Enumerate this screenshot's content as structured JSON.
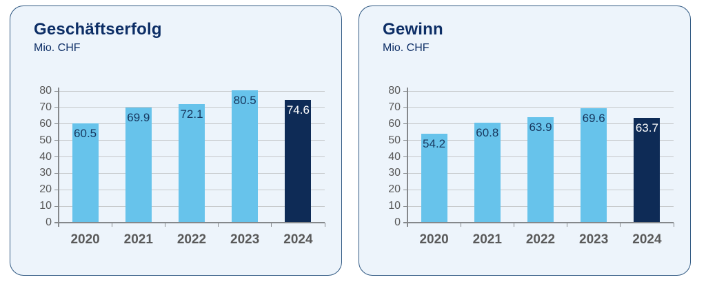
{
  "cards": [
    {
      "title": "Geschäftserfolg",
      "subtitle": "Mio. CHF"
    },
    {
      "title": "Gewinn",
      "subtitle": "Mio. CHF"
    }
  ],
  "chart_data": [
    {
      "type": "bar",
      "title": "Geschäftserfolg",
      "subtitle": "Mio. CHF",
      "ylabel": "Mio. CHF",
      "categories": [
        "2020",
        "2021",
        "2022",
        "2023",
        "2024"
      ],
      "values": [
        60.5,
        69.9,
        72.1,
        80.5,
        74.6
      ],
      "highlight_index": 4,
      "ylim": [
        0,
        80
      ],
      "ytick_step": 10,
      "grid": true,
      "legend": "none",
      "value_label_position": "inside-end"
    },
    {
      "type": "bar",
      "title": "Gewinn",
      "subtitle": "Mio. CHF",
      "ylabel": "Mio. CHF",
      "categories": [
        "2020",
        "2021",
        "2022",
        "2023",
        "2024"
      ],
      "values": [
        54.2,
        60.8,
        63.9,
        69.6,
        63.7
      ],
      "highlight_index": 4,
      "ylim": [
        0,
        80
      ],
      "ytick_step": 10,
      "grid": true,
      "legend": "none",
      "value_label_position": "inside-end"
    }
  ],
  "colors": {
    "bar_light": "#67C3EB",
    "bar_dark": "#0E2B56",
    "value_label_on_light": "#17375E",
    "value_label_on_dark": "#FFFFFF",
    "gridline": "#C5C8CA",
    "axis": "#85888B",
    "tick_text": "#595959",
    "title_text": "#0D2E66",
    "card_background": "#EDF4FB",
    "card_border": "#2F5882"
  }
}
